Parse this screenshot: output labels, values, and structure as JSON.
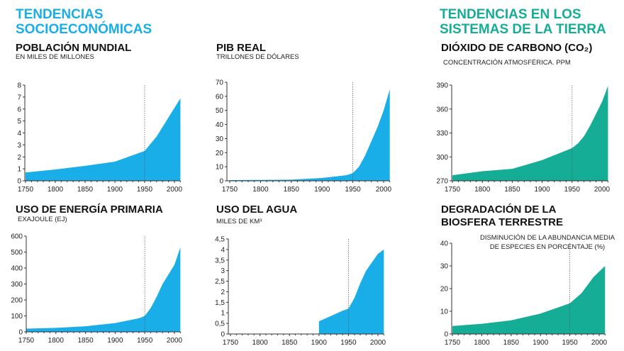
{
  "headers": {
    "socio": [
      "TENDENCIAS",
      "SOCIOECONÓMICAS"
    ],
    "earth": [
      "TENDENCIAS EN LOS",
      "SISTEMAS DE LA TIERRA"
    ]
  },
  "colors": {
    "socio": "#19aee8",
    "earth": "#16ad97"
  },
  "chart_data": [
    {
      "type": "area",
      "title": "POBLACIÓN MUNDIAL",
      "subtitle": "EN MILES DE  MILLONES",
      "group": "socio",
      "ylim": [
        0,
        8
      ],
      "yticks": [
        "0",
        "1",
        "2",
        "3",
        "4",
        "5",
        "6",
        "7",
        "8"
      ],
      "xticks": [
        "1750",
        "1800",
        "1850",
        "1900",
        "1950",
        "2000"
      ],
      "x": [
        1750,
        1800,
        1850,
        1900,
        1950,
        1970,
        1990,
        2010
      ],
      "y": [
        0.7,
        0.95,
        1.25,
        1.6,
        2.5,
        3.7,
        5.3,
        6.9
      ],
      "marker_year": 1950
    },
    {
      "type": "area",
      "title": "PIB REAL",
      "subtitle": "TRILLONES DE DÓLARES",
      "group": "socio",
      "ylim": [
        0,
        70
      ],
      "yticks": [
        "0",
        "10",
        "20",
        "30",
        "40",
        "50",
        "60",
        "70"
      ],
      "xticks": [
        "1750",
        "1800",
        "1850",
        "1900",
        "1950",
        "2000"
      ],
      "x": [
        1750,
        1800,
        1850,
        1900,
        1940,
        1950,
        1960,
        1970,
        1980,
        1990,
        2000,
        2010
      ],
      "y": [
        0.5,
        0.6,
        0.8,
        2,
        4,
        5.5,
        10,
        18,
        28,
        38,
        50,
        65
      ],
      "marker_year": 1950
    },
    {
      "type": "area",
      "title": "DIÓXIDO DE CARBONO (CO₂)",
      "subtitle": "CONCENTRACIÓN ATMOSFÉRICA. PPM",
      "group": "earth",
      "ylim": [
        270,
        390
      ],
      "yticks": [
        "270",
        "300",
        "330",
        "360",
        "390"
      ],
      "xticks": [
        "1750",
        "1800",
        "1850",
        "1900",
        "1950",
        "2000"
      ],
      "x": [
        1750,
        1800,
        1850,
        1900,
        1950,
        1960,
        1970,
        1980,
        1990,
        2000,
        2010
      ],
      "y": [
        277,
        282,
        285,
        296,
        311,
        317,
        326,
        339,
        354,
        369,
        389
      ],
      "marker_year": 1950
    },
    {
      "type": "area",
      "title": "USO DE ENERGÍA PRIMARIA",
      "subtitle": "EXAJOULE (EJ)",
      "group": "socio",
      "ylim": [
        0,
        600
      ],
      "yticks": [
        "0",
        "100",
        "200",
        "300",
        "400",
        "500",
        "600"
      ],
      "xticks": [
        "1750",
        "1800",
        "1850",
        "1900",
        "1950",
        "2000"
      ],
      "x": [
        1750,
        1800,
        1850,
        1900,
        1940,
        1950,
        1960,
        1970,
        1980,
        1990,
        2000,
        2010
      ],
      "y": [
        20,
        25,
        35,
        55,
        85,
        100,
        150,
        220,
        300,
        360,
        420,
        530
      ],
      "marker_year": 1950
    },
    {
      "type": "area",
      "title": "USO DEL AGUA",
      "subtitle": "MILES DE KM³",
      "group": "socio",
      "ylim": [
        0,
        4.5
      ],
      "yticks": [
        "0",
        "0,5",
        "1",
        "1,5",
        "2",
        "2,5",
        "3",
        "3,5",
        "4",
        "4,5"
      ],
      "xticks": [
        "1750",
        "1800",
        "1850",
        "1900",
        "1950",
        "2000"
      ],
      "x": [
        1900,
        1920,
        1940,
        1950,
        1960,
        1970,
        1980,
        1990,
        2000,
        2010
      ],
      "y": [
        0.6,
        0.85,
        1.1,
        1.2,
        1.7,
        2.4,
        3.0,
        3.4,
        3.8,
        4.0
      ],
      "marker_year": 1950
    },
    {
      "type": "area",
      "title": "DEGRADACIÓN DE LA BIOSFERA TERRESTRE",
      "subtitle": "DISMINUCIÓN DE LA ABUNDANCIA MEDIA DE ESPECIES EN PORCENTAJE (%)",
      "group": "earth",
      "ylim": [
        0,
        40
      ],
      "yticks": [
        "0",
        "10",
        "20",
        "30",
        "40"
      ],
      "xticks": [
        "1750",
        "1800",
        "1850",
        "1900",
        "1950",
        "2000"
      ],
      "x": [
        1750,
        1800,
        1850,
        1900,
        1950,
        1970,
        1990,
        2010
      ],
      "y": [
        3.5,
        4.5,
        6,
        9,
        13.5,
        18,
        25,
        30
      ],
      "marker_year": 1950
    }
  ]
}
